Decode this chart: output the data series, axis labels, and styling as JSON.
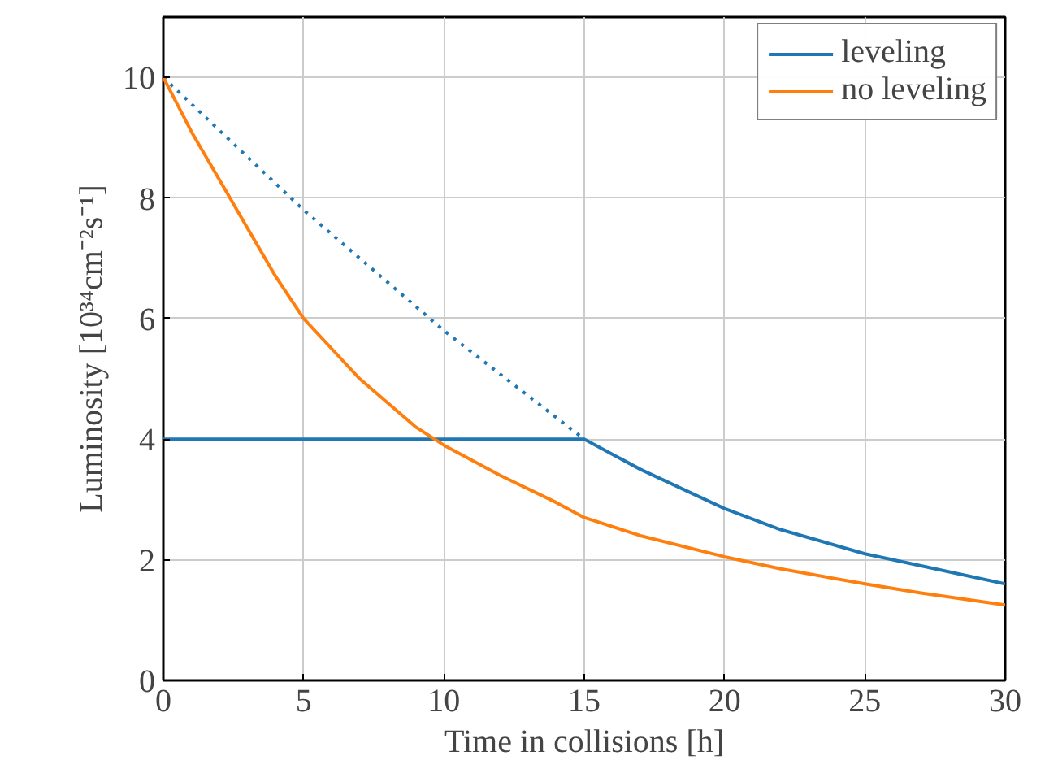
{
  "chart_data": {
    "type": "line",
    "xlabel": "Time in collisions [h]",
    "ylabel": "Luminosity [10³⁴cm⁻²s⁻¹]",
    "xlim": [
      0,
      30
    ],
    "ylim": [
      0,
      11
    ],
    "xticks": [
      0,
      5,
      10,
      15,
      20,
      25,
      30
    ],
    "yticks": [
      0,
      2,
      4,
      6,
      8,
      10
    ],
    "grid": true,
    "legend": "top right",
    "marker": "none",
    "series": [
      {
        "name": "leveling",
        "color": "#1f77b4",
        "line_style": "solid",
        "x": [
          0,
          15,
          17,
          20,
          22,
          25,
          27,
          30
        ],
        "values": [
          4,
          4,
          3.5,
          2.85,
          2.5,
          2.1,
          1.9,
          1.6
        ]
      },
      {
        "color": "#1f77b4",
        "line_style": "dotted",
        "x": [
          0,
          5,
          10,
          15
        ],
        "values": [
          10,
          7.8,
          5.8,
          4
        ]
      },
      {
        "name": "no leveling",
        "color": "#ff7f0e",
        "line_style": "solid",
        "x": [
          0,
          1,
          2,
          3,
          4,
          5,
          6,
          7,
          8,
          9,
          10,
          12,
          14,
          15,
          17,
          20,
          22,
          25,
          27,
          30
        ],
        "values": [
          10,
          9.1,
          8.3,
          7.5,
          6.7,
          6.0,
          5.5,
          5.0,
          4.6,
          4.2,
          3.9,
          3.4,
          2.95,
          2.7,
          2.4,
          2.05,
          1.85,
          1.6,
          1.45,
          1.25
        ]
      }
    ]
  }
}
